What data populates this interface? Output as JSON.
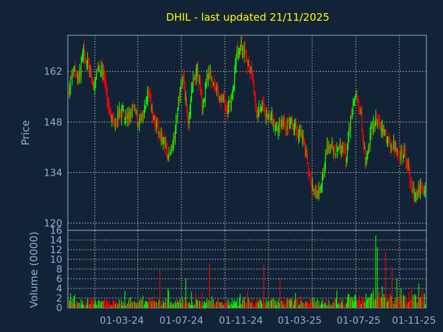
{
  "chart_data": [
    {
      "type": "candlestick",
      "title": "DHIL - last updated 21/11/2025",
      "ylabel": "Price",
      "yticks": [
        120,
        134,
        148,
        162
      ],
      "ylim": [
        118,
        172
      ],
      "xticks": [
        "01-03-24",
        "01-07-24",
        "01-11-24",
        "01-03-25",
        "01-07-25",
        "01-11-25"
      ],
      "grid": true,
      "colors": {
        "up": "#00ff00",
        "down": "#ff0000",
        "title": "#ffff00",
        "axis_text": "#8fb0d6",
        "frame": "#8fb0d6",
        "grid": "#c0c0c0",
        "background": "#132337"
      },
      "anchors": [
        {
          "t": 0,
          "p": 157
        },
        {
          "t": 3,
          "p": 163
        },
        {
          "t": 6,
          "p": 160
        },
        {
          "t": 9,
          "p": 168
        },
        {
          "t": 12,
          "p": 163
        },
        {
          "t": 15,
          "p": 157
        },
        {
          "t": 18,
          "p": 164
        },
        {
          "t": 21,
          "p": 161
        },
        {
          "t": 24,
          "p": 152
        },
        {
          "t": 27,
          "p": 148
        },
        {
          "t": 30,
          "p": 150
        },
        {
          "t": 33,
          "p": 151
        },
        {
          "t": 36,
          "p": 149
        },
        {
          "t": 39,
          "p": 152
        },
        {
          "t": 42,
          "p": 148
        },
        {
          "t": 45,
          "p": 149
        },
        {
          "t": 48,
          "p": 157
        },
        {
          "t": 51,
          "p": 150
        },
        {
          "t": 54,
          "p": 146
        },
        {
          "t": 57,
          "p": 143
        },
        {
          "t": 60,
          "p": 138
        },
        {
          "t": 63,
          "p": 142
        },
        {
          "t": 66,
          "p": 152
        },
        {
          "t": 69,
          "p": 162
        },
        {
          "t": 72,
          "p": 148
        },
        {
          "t": 75,
          "p": 158
        },
        {
          "t": 78,
          "p": 163
        },
        {
          "t": 81,
          "p": 151
        },
        {
          "t": 84,
          "p": 162
        },
        {
          "t": 87,
          "p": 160
        },
        {
          "t": 90,
          "p": 156
        },
        {
          "t": 93,
          "p": 154
        },
        {
          "t": 96,
          "p": 151
        },
        {
          "t": 99,
          "p": 155
        },
        {
          "t": 102,
          "p": 168
        },
        {
          "t": 105,
          "p": 169
        },
        {
          "t": 108,
          "p": 165
        },
        {
          "t": 111,
          "p": 160
        },
        {
          "t": 114,
          "p": 150
        },
        {
          "t": 117,
          "p": 153
        },
        {
          "t": 120,
          "p": 150
        },
        {
          "t": 123,
          "p": 149
        },
        {
          "t": 126,
          "p": 146
        },
        {
          "t": 129,
          "p": 148
        },
        {
          "t": 132,
          "p": 147
        },
        {
          "t": 135,
          "p": 148
        },
        {
          "t": 138,
          "p": 146
        },
        {
          "t": 141,
          "p": 145
        },
        {
          "t": 144,
          "p": 138
        },
        {
          "t": 147,
          "p": 130
        },
        {
          "t": 150,
          "p": 127
        },
        {
          "t": 153,
          "p": 130
        },
        {
          "t": 156,
          "p": 140
        },
        {
          "t": 159,
          "p": 142
        },
        {
          "t": 162,
          "p": 140
        },
        {
          "t": 165,
          "p": 141
        },
        {
          "t": 168,
          "p": 138
        },
        {
          "t": 171,
          "p": 150
        },
        {
          "t": 174,
          "p": 156
        },
        {
          "t": 177,
          "p": 150
        },
        {
          "t": 180,
          "p": 136
        },
        {
          "t": 183,
          "p": 145
        },
        {
          "t": 186,
          "p": 148
        },
        {
          "t": 189,
          "p": 146
        },
        {
          "t": 192,
          "p": 144
        },
        {
          "t": 195,
          "p": 142
        },
        {
          "t": 198,
          "p": 141
        },
        {
          "t": 201,
          "p": 139
        },
        {
          "t": 204,
          "p": 139
        },
        {
          "t": 207,
          "p": 132
        },
        {
          "t": 210,
          "p": 127
        },
        {
          "t": 213,
          "p": 130
        },
        {
          "t": 216,
          "p": 128
        }
      ]
    },
    {
      "type": "bar",
      "ylabel": "Volume (0000)",
      "yticks": [
        0,
        2,
        4,
        6,
        8,
        10,
        12,
        14,
        16
      ],
      "ylim": [
        0,
        16
      ],
      "grid": true,
      "spikes": [
        {
          "t": 55,
          "v": 8.0
        },
        {
          "t": 71,
          "v": 6.0
        },
        {
          "t": 85,
          "v": 9.0
        },
        {
          "t": 118,
          "v": 9.0
        },
        {
          "t": 128,
          "v": 6.0
        },
        {
          "t": 186,
          "v": 15.0
        },
        {
          "t": 187,
          "v": 12.5
        },
        {
          "t": 192,
          "v": 11.5
        },
        {
          "t": 196,
          "v": 8.5
        },
        {
          "t": 199,
          "v": 6.0
        },
        {
          "t": 212,
          "v": 5.0
        },
        {
          "t": 214,
          "v": 4.0
        }
      ]
    }
  ]
}
